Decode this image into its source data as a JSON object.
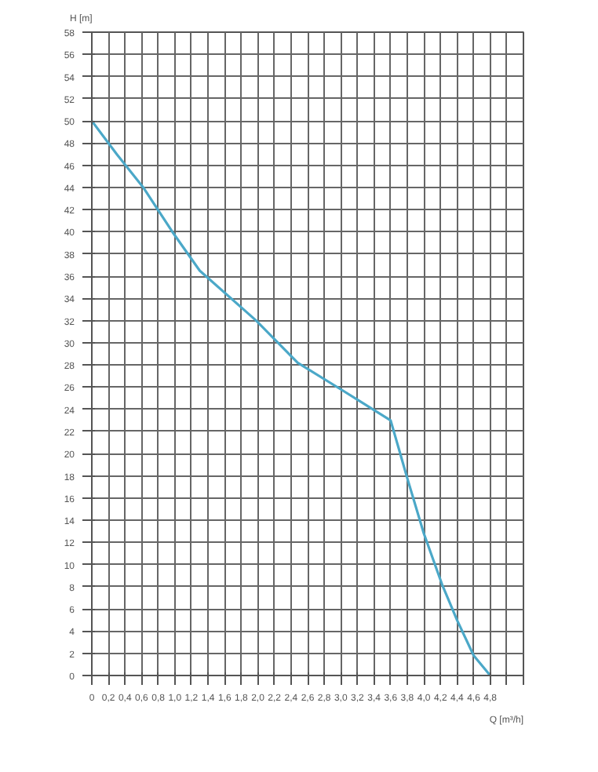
{
  "chart_data": {
    "type": "line",
    "xlabel": "Q [m³/h]",
    "ylabel": "H [m]",
    "x": [
      0,
      0.3,
      0.62,
      0.97,
      1.3,
      1.98,
      2.48,
      3.0,
      3.6,
      3.8,
      4.0,
      4.22,
      4.4,
      4.6,
      4.8
    ],
    "series": [
      {
        "color": "#4ba8c8",
        "values": [
          50,
          47,
          44,
          40,
          36.5,
          32,
          28.2,
          25.8,
          23,
          17.8,
          12.8,
          8.2,
          5,
          1.8,
          0
        ]
      }
    ],
    "xlim": [
      0,
      5.2
    ],
    "ylim": [
      0,
      58
    ],
    "xticks": [
      0,
      {
        "value": 0.2,
        "label": "0,2"
      },
      {
        "value": 0.4,
        "label": "0,4"
      },
      {
        "value": 0.6,
        "label": "0,6"
      },
      {
        "value": 0.8,
        "label": "0,8"
      },
      {
        "value": 1.0,
        "label": "1,0"
      },
      {
        "value": 1.2,
        "label": "1,2"
      },
      {
        "value": 1.4,
        "label": "1,4"
      },
      {
        "value": 1.6,
        "label": "1,6"
      },
      {
        "value": 1.8,
        "label": "1,8"
      },
      {
        "value": 2.0,
        "label": "2,0"
      },
      {
        "value": 2.2,
        "label": "2,2"
      },
      {
        "value": 2.4,
        "label": "2,4"
      },
      {
        "value": 2.6,
        "label": "2,6"
      },
      {
        "value": 2.8,
        "label": "2,8"
      },
      {
        "value": 3.0,
        "label": "3,0"
      },
      {
        "value": 3.2,
        "label": "3,2"
      },
      {
        "value": 3.4,
        "label": "3,4"
      },
      {
        "value": 3.6,
        "label": "3,6"
      },
      {
        "value": 3.8,
        "label": "3,8"
      },
      {
        "value": 4.0,
        "label": "4,0"
      },
      {
        "value": 4.2,
        "label": "4,2"
      },
      {
        "value": 4.4,
        "label": "4,4"
      },
      {
        "value": 4.6,
        "label": "4,6"
      },
      {
        "value": 4.8,
        "label": "4,8"
      },
      {
        "value": 5.0,
        "label": null
      },
      {
        "value": 5.2,
        "label": null
      }
    ],
    "yticks": [
      0,
      2,
      4,
      6,
      8,
      10,
      12,
      14,
      16,
      18,
      20,
      22,
      24,
      26,
      28,
      30,
      32,
      34,
      36,
      38,
      40,
      42,
      44,
      46,
      48,
      50,
      52,
      54,
      56,
      58
    ],
    "grid": true,
    "marker": "none",
    "line_style": "solid"
  }
}
